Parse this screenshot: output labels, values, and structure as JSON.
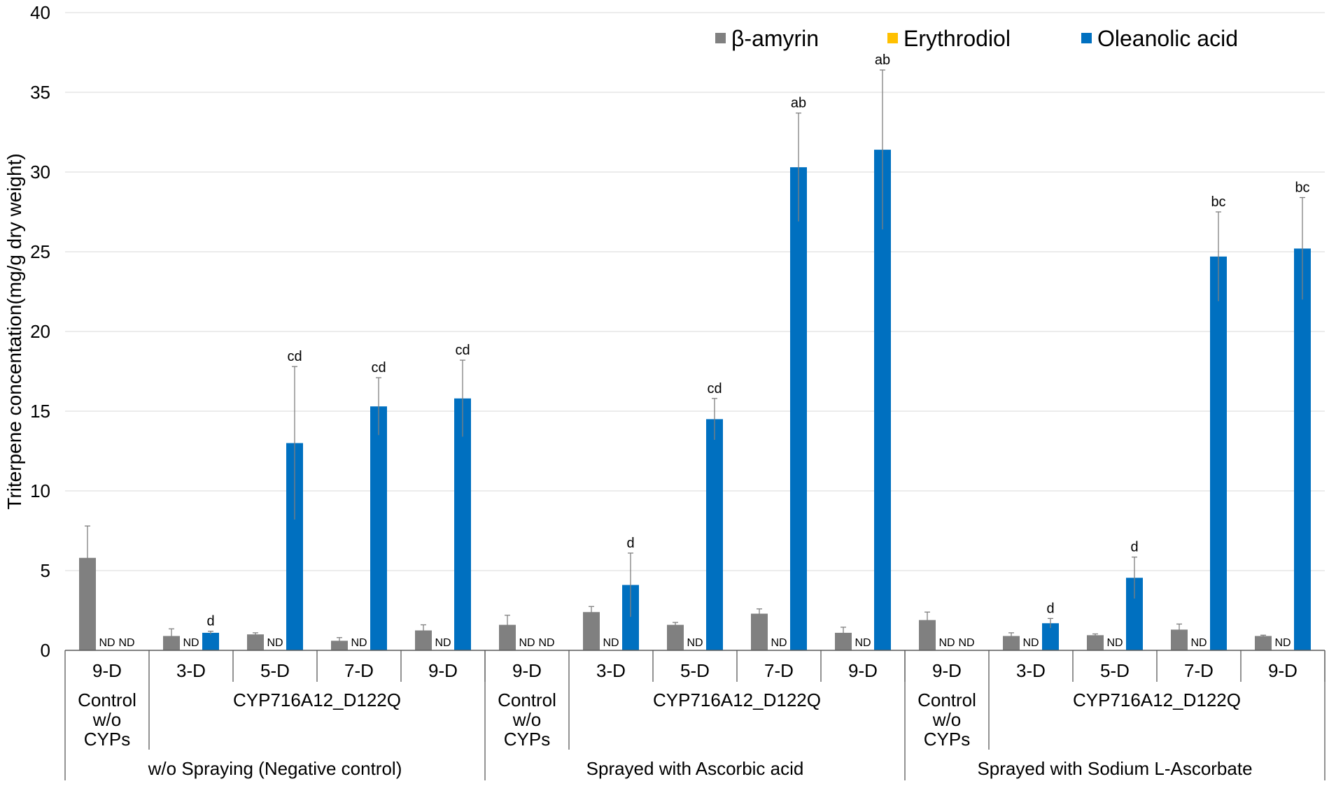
{
  "chart_data": {
    "type": "bar",
    "title": "",
    "xlabel": "",
    "ylabel": "Triterpene concentation(mg/g dry weight)",
    "ylim": [
      0,
      40
    ],
    "yticks": [
      0,
      5,
      10,
      15,
      20,
      25,
      30,
      35,
      40
    ],
    "grid": true,
    "legend_position": "top-right",
    "series": [
      {
        "name": "β-amyrin",
        "color": "#808080"
      },
      {
        "name": "Erythrodiol",
        "color": "#FFC000"
      },
      {
        "name": "Oleanolic acid",
        "color": "#0070C0"
      }
    ],
    "nd_label": "ND",
    "groups": [
      {
        "label": "w/o Spraying (Negative control)",
        "categories": [
          {
            "day": "9-D",
            "sub": [
              "Control",
              "w/o",
              "CYPs"
            ],
            "values": [
              5.8,
              null,
              null
            ],
            "errors": [
              2.0,
              null,
              null
            ],
            "sig": "",
            "nd": [
              false,
              true,
              true
            ]
          },
          {
            "day": "3-D",
            "values": [
              0.9,
              null,
              1.1
            ],
            "errors": [
              0.45,
              null,
              0.1
            ],
            "sig": "d",
            "nd": [
              false,
              true,
              false
            ]
          },
          {
            "day": "5-D",
            "values": [
              1.0,
              null,
              13.0
            ],
            "errors": [
              0.1,
              null,
              4.8
            ],
            "sig": "cd",
            "nd": [
              false,
              true,
              false
            ]
          },
          {
            "day": "7-D",
            "values": [
              0.6,
              null,
              15.3
            ],
            "errors": [
              0.2,
              null,
              1.8
            ],
            "sig": "cd",
            "nd": [
              false,
              true,
              false
            ]
          },
          {
            "day": "9-D",
            "values": [
              1.25,
              null,
              15.8
            ],
            "errors": [
              0.35,
              null,
              2.4
            ],
            "sig": "cd",
            "nd": [
              false,
              true,
              false
            ]
          }
        ],
        "sublabel": "CYP716A12_D122Q"
      },
      {
        "label": "Sprayed with Ascorbic acid",
        "categories": [
          {
            "day": "9-D",
            "sub": [
              "Control",
              "w/o",
              "CYPs"
            ],
            "values": [
              1.6,
              null,
              null
            ],
            "errors": [
              0.6,
              null,
              null
            ],
            "sig": "",
            "nd": [
              false,
              true,
              true
            ]
          },
          {
            "day": "3-D",
            "values": [
              2.4,
              null,
              4.1
            ],
            "errors": [
              0.35,
              null,
              2.0
            ],
            "sig": "d",
            "nd": [
              false,
              true,
              false
            ]
          },
          {
            "day": "5-D",
            "values": [
              1.6,
              null,
              14.5
            ],
            "errors": [
              0.15,
              null,
              1.3
            ],
            "sig": "cd",
            "nd": [
              false,
              true,
              false
            ]
          },
          {
            "day": "7-D",
            "values": [
              2.3,
              null,
              30.3
            ],
            "errors": [
              0.3,
              null,
              3.4
            ],
            "sig": "ab",
            "nd": [
              false,
              true,
              false
            ]
          },
          {
            "day": "9-D",
            "values": [
              1.1,
              null,
              31.4
            ],
            "errors": [
              0.35,
              null,
              5.0
            ],
            "sig": "ab",
            "nd": [
              false,
              true,
              false
            ]
          }
        ],
        "sublabel": "CYP716A12_D122Q"
      },
      {
        "label": "Sprayed with Sodium L-Ascorbate",
        "categories": [
          {
            "day": "9-D",
            "sub": [
              "Control",
              "w/o",
              "CYPs"
            ],
            "values": [
              1.9,
              null,
              null
            ],
            "errors": [
              0.5,
              null,
              null
            ],
            "sig": "",
            "nd": [
              false,
              true,
              true
            ]
          },
          {
            "day": "3-D",
            "values": [
              0.9,
              null,
              1.7
            ],
            "errors": [
              0.2,
              null,
              0.3
            ],
            "sig": "d",
            "nd": [
              false,
              true,
              false
            ]
          },
          {
            "day": "5-D",
            "values": [
              0.95,
              null,
              4.55
            ],
            "errors": [
              0.08,
              null,
              1.3
            ],
            "sig": "d",
            "nd": [
              false,
              true,
              false
            ]
          },
          {
            "day": "7-D",
            "values": [
              1.3,
              null,
              24.7
            ],
            "errors": [
              0.35,
              null,
              2.8
            ],
            "sig": "bc",
            "nd": [
              false,
              true,
              false
            ]
          },
          {
            "day": "9-D",
            "values": [
              0.9,
              null,
              25.2
            ],
            "errors": [
              0.05,
              null,
              3.2
            ],
            "sig": "bc",
            "nd": [
              false,
              true,
              false
            ]
          }
        ],
        "sublabel": "CYP716A12_D122Q"
      }
    ]
  }
}
